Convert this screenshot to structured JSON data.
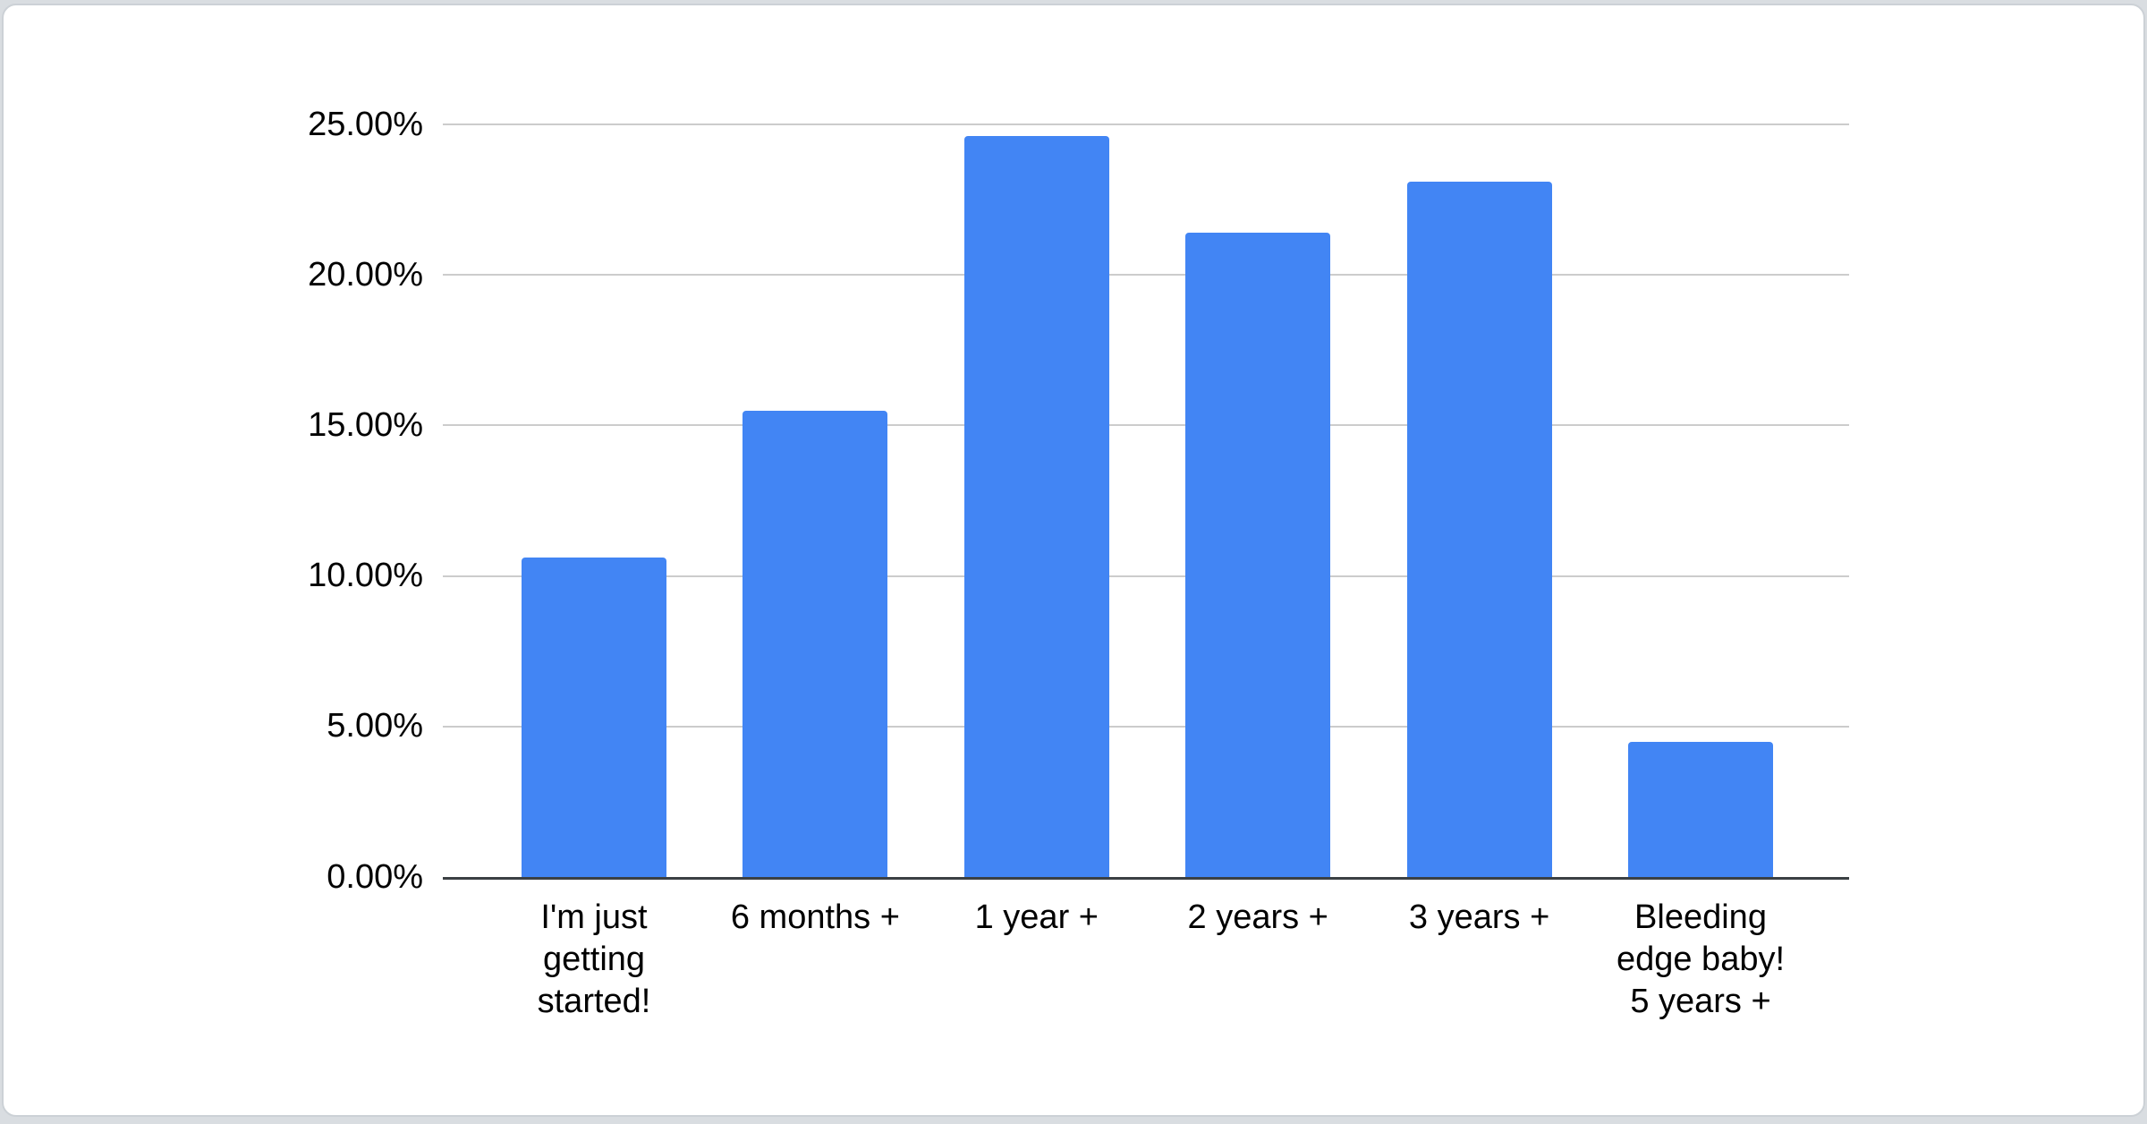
{
  "chart_data": {
    "type": "bar",
    "title": "",
    "xlabel": "",
    "ylabel": "",
    "categories": [
      "I'm just getting started!",
      "6 months +",
      "1 year +",
      "2 years +",
      "3 years +",
      "Bleeding edge baby! 5 years +"
    ],
    "categories_wrapped": [
      "I'm just\ngetting\nstarted!",
      "6 months +",
      "1 year +",
      "2 years +",
      "3 years +",
      "Bleeding\nedge baby!\n5 years +"
    ],
    "values": [
      10.6,
      15.5,
      24.6,
      21.4,
      23.1,
      4.5
    ],
    "value_unit": "%",
    "ylim": [
      0,
      25
    ],
    "ytick_step": 5,
    "ytick_labels": [
      "0.00%",
      "5.00%",
      "10.00%",
      "15.00%",
      "20.00%",
      "25.00%"
    ],
    "grid": true,
    "legend": false,
    "series_name": ""
  },
  "theme": {
    "page_bg": "#d9dde1",
    "card_bg": "#ffffff",
    "card_border": "#ccd1d6",
    "bar_color": "#4285f4",
    "grid_color": "#cccccc",
    "axis_color": "#3b4043",
    "text_color": "#000000"
  }
}
